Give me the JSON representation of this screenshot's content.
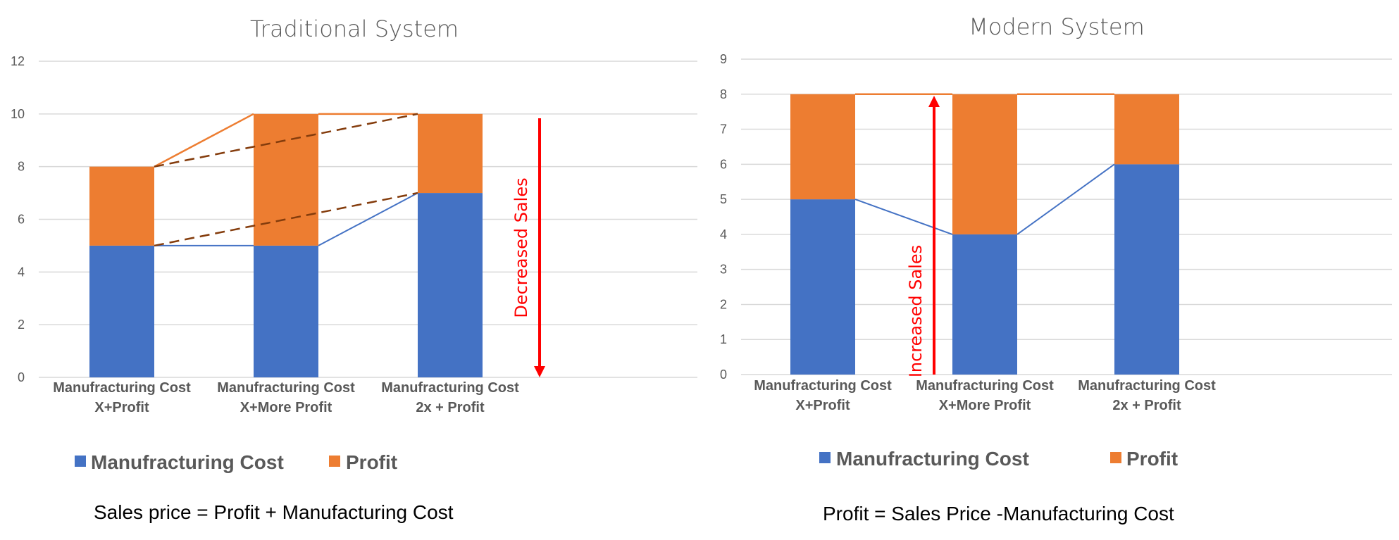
{
  "colors": {
    "cost": "#4472C4",
    "profit": "#ED7D31",
    "grid": "#D9D9D9",
    "arrow": "#FF0000",
    "dashed": "#843C0C"
  },
  "formulas": {
    "left": "Sales price = Profit + Manufacturing Cost",
    "right": "Profit = Sales Price -Manufacturing Cost"
  },
  "chart_data": [
    {
      "type": "bar",
      "stacked": true,
      "title": "Traditional System",
      "categories": [
        [
          "Manufracturing Cost",
          "X+Profit"
        ],
        [
          "Manufracturing Cost",
          "X+More Profit"
        ],
        [
          "Manufracturing Cost",
          "2x + Profit"
        ]
      ],
      "series": [
        {
          "name": "Manufracturing Cost",
          "values": [
            5,
            5,
            7
          ]
        },
        {
          "name": "Profit",
          "values": [
            3,
            5,
            3
          ]
        }
      ],
      "ylim": [
        0,
        12
      ],
      "yticks": [
        0,
        2,
        4,
        6,
        8,
        10,
        12
      ],
      "grid": true,
      "legend": "bottom",
      "annotation": "Decreased Sales"
    },
    {
      "type": "bar",
      "stacked": true,
      "title": "Modern System",
      "categories": [
        [
          "Manufracturing Cost",
          "X+Profit"
        ],
        [
          "Manufracturing Cost",
          "X+More Profit"
        ],
        [
          "Manufracturing Cost",
          "2x + Profit"
        ]
      ],
      "series": [
        {
          "name": "Manufracturing Cost",
          "values": [
            5,
            4,
            6
          ]
        },
        {
          "name": "Profit",
          "values": [
            3,
            4,
            2
          ]
        }
      ],
      "ylim": [
        0,
        9
      ],
      "yticks": [
        0,
        1,
        2,
        3,
        4,
        5,
        6,
        7,
        8,
        9
      ],
      "grid": true,
      "legend": "bottom",
      "annotation": "Increased Sales"
    }
  ]
}
